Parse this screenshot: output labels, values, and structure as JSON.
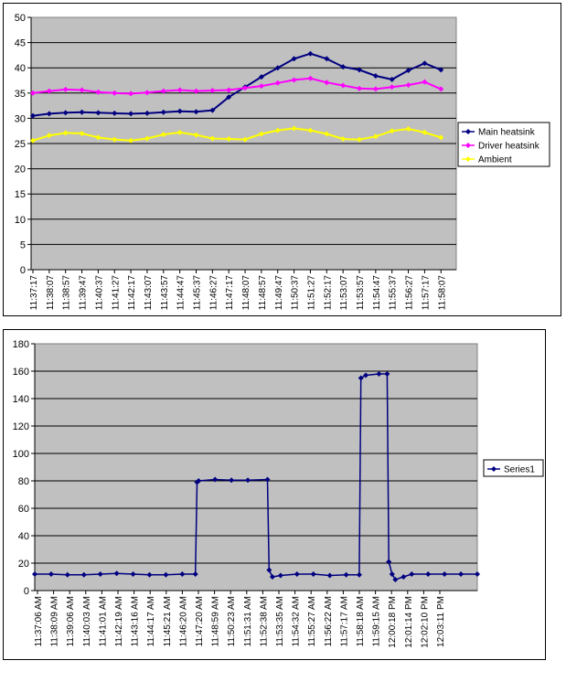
{
  "chart_data": [
    {
      "type": "line",
      "title": "",
      "xlabel": "",
      "ylabel": "",
      "ylim": [
        0,
        50
      ],
      "y_ticks": [
        0,
        5,
        10,
        15,
        20,
        25,
        30,
        35,
        40,
        45,
        50
      ],
      "grid": true,
      "legend_placement": "right",
      "x_tick_labels": [
        "11:37:17",
        "11:38:07",
        "11:38:57",
        "11:39:47",
        "11:40:37",
        "11:41:27",
        "11:42:17",
        "11:43:07",
        "11:43:57",
        "11:44:47",
        "11:45:37",
        "11:46:27",
        "11:47:17",
        "11:48:07",
        "11:48:57",
        "11:49:47",
        "11:50:37",
        "11:51:27",
        "11:52:17",
        "11:53:07",
        "11:53:57",
        "11:54:47",
        "11:55:37",
        "11:56:27",
        "11:57:17",
        "11:58:07"
      ],
      "colors": {
        "plot_bg": "#c0c0c0",
        "grid": "#000000"
      },
      "series": [
        {
          "name": "Main heatsink",
          "color": "#000080",
          "values": [
            30.5,
            30.9,
            31.1,
            31.2,
            31.1,
            31.0,
            30.9,
            31.0,
            31.2,
            31.4,
            31.3,
            31.6,
            34.2,
            36.2,
            38.2,
            40.0,
            41.8,
            42.8,
            41.8,
            40.2,
            39.6,
            38.4,
            37.7,
            39.5,
            40.9,
            39.6
          ]
        },
        {
          "name": "Driver heatsink",
          "color": "#ff00ff",
          "values": [
            35.0,
            35.4,
            35.7,
            35.6,
            35.2,
            35.0,
            34.9,
            35.1,
            35.4,
            35.6,
            35.4,
            35.5,
            35.6,
            36.0,
            36.4,
            37.0,
            37.6,
            37.9,
            37.1,
            36.5,
            35.9,
            35.8,
            36.2,
            36.6,
            37.2,
            35.8
          ]
        },
        {
          "name": "Ambient",
          "color": "#ffff00",
          "values": [
            25.6,
            26.6,
            27.1,
            27.0,
            26.2,
            25.8,
            25.6,
            26.0,
            26.8,
            27.2,
            26.7,
            26.0,
            25.9,
            25.8,
            26.9,
            27.6,
            28.0,
            27.6,
            26.9,
            25.9,
            25.8,
            26.4,
            27.5,
            27.9,
            27.2,
            26.2
          ]
        }
      ]
    },
    {
      "type": "line",
      "title": "",
      "xlabel": "",
      "ylabel": "",
      "ylim": [
        0,
        180
      ],
      "y_ticks": [
        0,
        20,
        40,
        60,
        80,
        100,
        120,
        140,
        160,
        180
      ],
      "grid": true,
      "legend_placement": "right",
      "x_tick_labels": [
        "11:37:06 AM",
        "11:38:09 AM",
        "11:39:06 AM",
        "11:40:03 AM",
        "11:41:01 AM",
        "11:42:19 AM",
        "11:43:16 AM",
        "11:44:17 AM",
        "11:45:21 AM",
        "11:46:20 AM",
        "11:47:20 AM",
        "11:48:59 AM",
        "11:50:23 AM",
        "11:51:31 AM",
        "11:52:38 AM",
        "11:53:35 AM",
        "11:54:32 AM",
        "11:55:27 AM",
        "11:56:22 AM",
        "11:57:17 AM",
        "11:58:18 AM",
        "11:59:15 AM",
        "12:00:18 PM",
        "12:01:14 PM",
        "12:02:10 PM",
        "12:03:11 PM"
      ],
      "colors": {
        "plot_bg": "#c0c0c0",
        "grid": "#000000"
      },
      "series": [
        {
          "name": "Series1",
          "color": "#000080",
          "points": [
            [
              0,
              12
            ],
            [
              1,
              12
            ],
            [
              2,
              11.5
            ],
            [
              3,
              11.5
            ],
            [
              4,
              12
            ],
            [
              5,
              12.5
            ],
            [
              6,
              12
            ],
            [
              7,
              11.5
            ],
            [
              8,
              11.5
            ],
            [
              9,
              12
            ],
            [
              9.8,
              12
            ],
            [
              9.9,
              79
            ],
            [
              10,
              80
            ],
            [
              11,
              81
            ],
            [
              12,
              80.5
            ],
            [
              13,
              80.5
            ],
            [
              14.2,
              81
            ],
            [
              14.3,
              15
            ],
            [
              14.5,
              10
            ],
            [
              15,
              11
            ],
            [
              16,
              12
            ],
            [
              17,
              12
            ],
            [
              18,
              11
            ],
            [
              19,
              11.5
            ],
            [
              19.8,
              11.5
            ],
            [
              19.9,
              155
            ],
            [
              20.2,
              157
            ],
            [
              21,
              158
            ],
            [
              21.5,
              158
            ],
            [
              21.6,
              21
            ],
            [
              21.8,
              12
            ],
            [
              22,
              8
            ],
            [
              22.5,
              10
            ],
            [
              23,
              12
            ],
            [
              24,
              12
            ],
            [
              25,
              12
            ],
            [
              26,
              12
            ],
            [
              27,
              12
            ]
          ],
          "x_domain": [
            0,
            27
          ]
        }
      ]
    }
  ]
}
